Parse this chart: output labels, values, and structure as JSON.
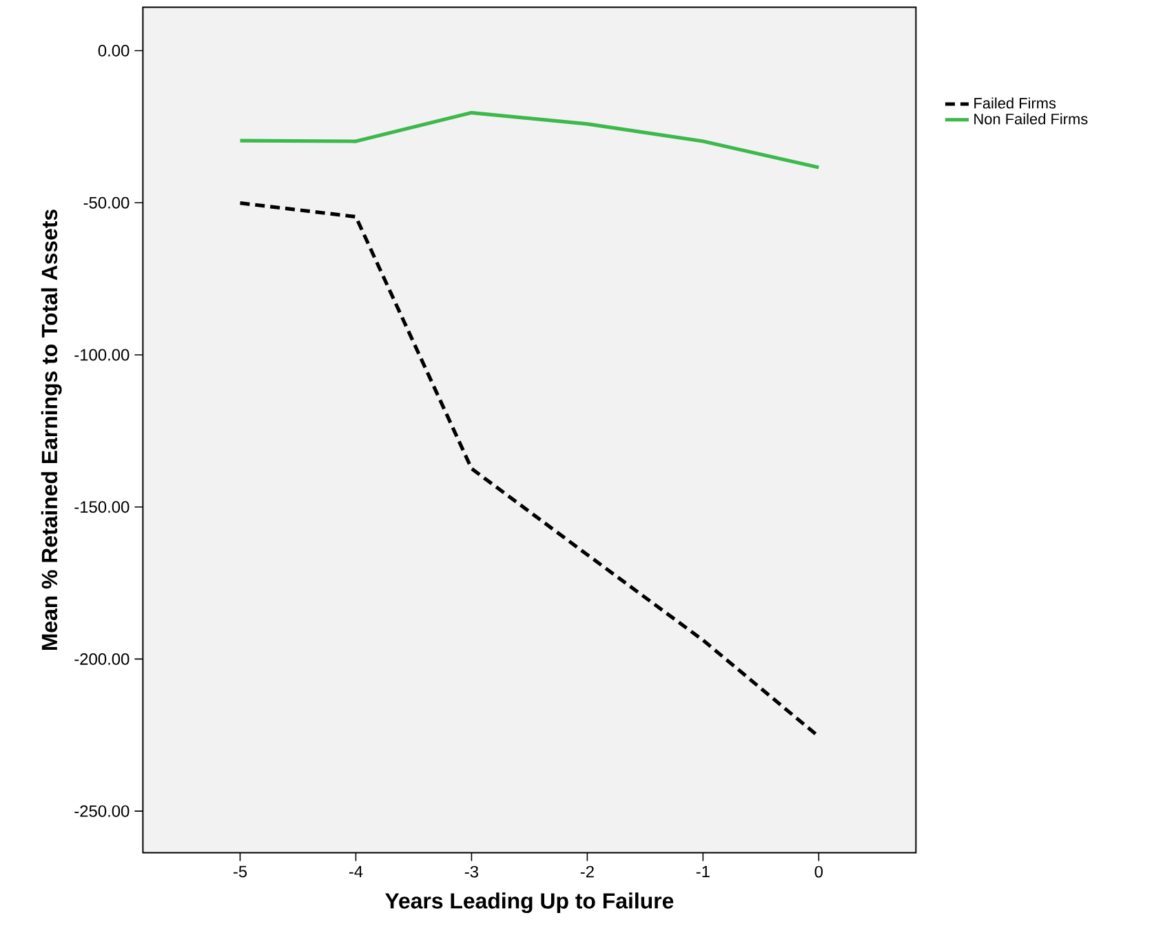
{
  "chart_data": {
    "type": "line",
    "xlabel": "Years Leading Up to Failure",
    "ylabel": "Mean % Retained Earnings to Total Assets",
    "x": [
      -5,
      -4,
      -3,
      -2,
      -1,
      0
    ],
    "series": [
      {
        "name": "Failed Firms",
        "color": "#000000",
        "line_style": "dashed",
        "values": [
          -50.1,
          -54.6,
          -137.4,
          -165.7,
          -193.8,
          -225.5
        ]
      },
      {
        "name": "Non Failed Firms",
        "color": "#3cb94a",
        "line_style": "solid",
        "values": [
          -29.6,
          -29.8,
          -20.4,
          -24.1,
          -29.8,
          -38.4
        ]
      }
    ],
    "xlim": [
      -5.84,
      0.84
    ],
    "xticks": [
      -5,
      -4,
      -3,
      -2,
      -1,
      0
    ],
    "ylim": [
      -263.7,
      14.3
    ],
    "yticks": [
      {
        "value": 0,
        "label": "0.00"
      },
      {
        "value": -50,
        "label": "-50.00"
      },
      {
        "value": -100,
        "label": "-100.00"
      },
      {
        "value": -150,
        "label": "-150.00"
      },
      {
        "value": -200,
        "label": "-200.00"
      },
      {
        "value": -250,
        "label": "-250.00"
      }
    ],
    "grid": false,
    "legend": "top right",
    "marker": "none"
  }
}
